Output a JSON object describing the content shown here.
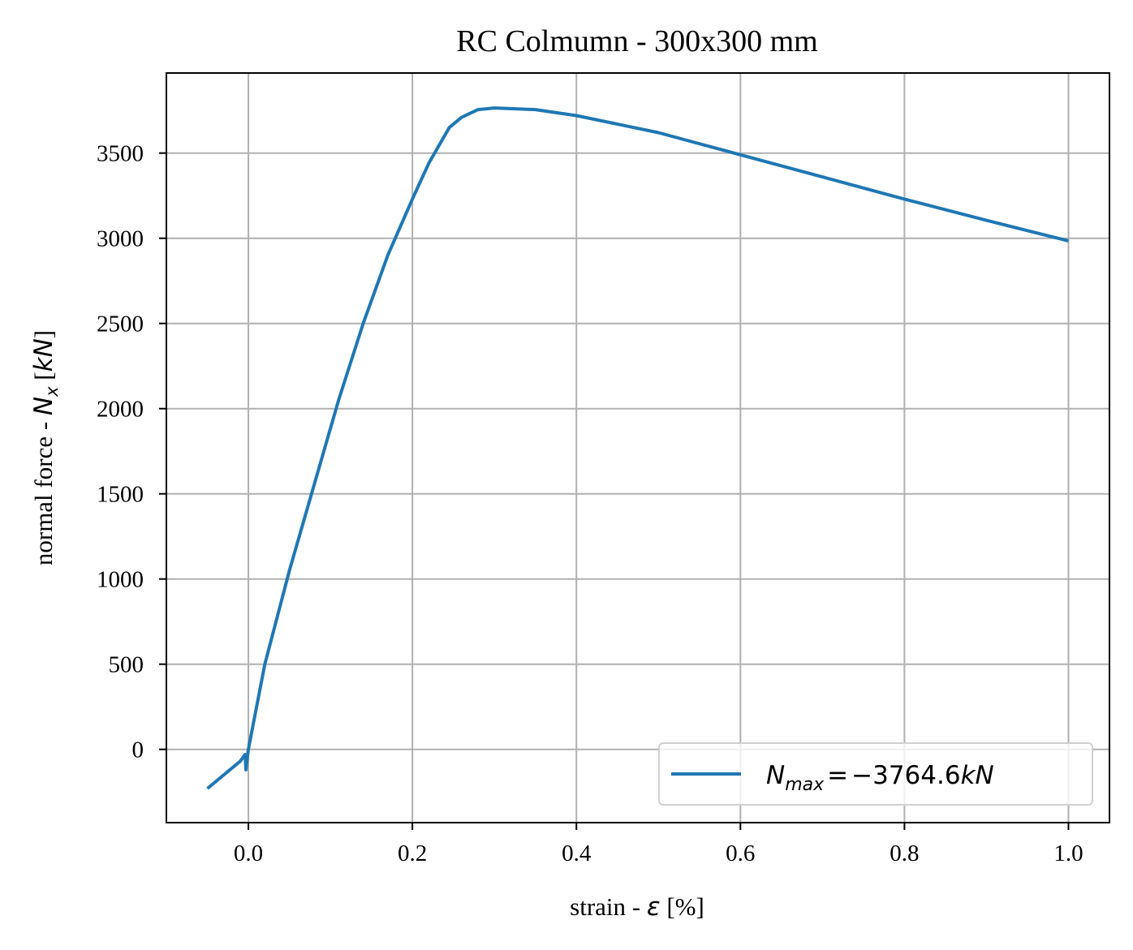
{
  "chart_data": {
    "type": "line",
    "title": "RC Colmumn - 300x300 mm",
    "xlabel": {
      "prefix": "strain - ",
      "symbol": "ε",
      "suffix": " [%]"
    },
    "ylabel": {
      "prefix": "normal force - ",
      "symbol": "N",
      "subscript": "x",
      "suffix_open": " [",
      "unit": "kN",
      "suffix_close": "]"
    },
    "xlim": [
      -0.1,
      1.05
    ],
    "ylim": [
      -430,
      3970
    ],
    "xticks": [
      0.0,
      0.2,
      0.4,
      0.6,
      0.8,
      1.0
    ],
    "xtick_labels": [
      "0.0",
      "0.2",
      "0.4",
      "0.6",
      "0.8",
      "1.0"
    ],
    "yticks": [
      0,
      500,
      1000,
      1500,
      2000,
      2500,
      3000,
      3500
    ],
    "ytick_labels": [
      "0",
      "500",
      "1000",
      "1500",
      "2000",
      "2500",
      "3000",
      "3500"
    ],
    "grid": true,
    "legend_position": "lower right",
    "series": [
      {
        "name": "N_max = −3764.6kN",
        "legend": {
          "symbol": "N",
          "subscript": "max",
          "equals": "=",
          "value": "−3764.6",
          "unit": "kN"
        },
        "color": "#1f77b4",
        "x": [
          -0.05,
          -0.03,
          -0.01,
          -0.004,
          -0.003,
          -0.002,
          0.0,
          0.02,
          0.05,
          0.08,
          0.11,
          0.14,
          0.17,
          0.2,
          0.22,
          0.245,
          0.26,
          0.28,
          0.3,
          0.35,
          0.4,
          0.5,
          0.6,
          0.7,
          0.8,
          0.9,
          1.0
        ],
        "y": [
          -230,
          -150,
          -70,
          -30,
          -120,
          -80,
          0,
          500,
          1050,
          1550,
          2050,
          2500,
          2900,
          3230,
          3440,
          3650,
          3710,
          3755,
          3765,
          3755,
          3720,
          3620,
          3490,
          3360,
          3230,
          3105,
          2985
        ]
      }
    ]
  }
}
